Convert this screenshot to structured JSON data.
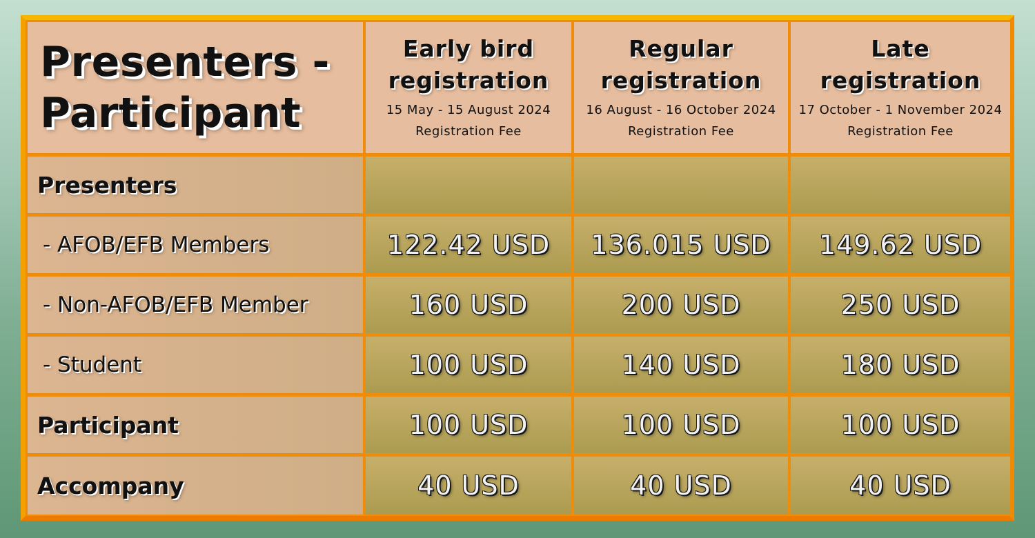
{
  "table": {
    "title_line1": "Presenters -",
    "title_line2": "Participant",
    "columns": [
      {
        "name_line1": "Early bird",
        "name_line2": "registration",
        "dates": "15 May - 15 August 2024",
        "fee_label": "Registration Fee"
      },
      {
        "name_line1": "Regular",
        "name_line2": "registration",
        "dates": "16 August - 16 October 2024",
        "fee_label": "Registration Fee"
      },
      {
        "name_line1": "Late",
        "name_line2": "registration",
        "dates": "17 October - 1 November 2024",
        "fee_label": "Registration Fee"
      }
    ],
    "rows": [
      {
        "label": "Presenters",
        "prices": [
          "",
          "",
          ""
        ]
      },
      {
        "label": " - AFOB/EFB Members",
        "prices": [
          "122.42 USD",
          "136.015 USD",
          "149.62 USD"
        ]
      },
      {
        "label": " - Non-AFOB/EFB Member",
        "prices": [
          "160 USD",
          "200 USD",
          "250 USD"
        ]
      },
      {
        "label": " - Student",
        "prices": [
          "100 USD",
          "140 USD",
          "180 USD"
        ]
      },
      {
        "label": "Participant",
        "prices": [
          "100 USD",
          "100 USD",
          "100 USD"
        ]
      },
      {
        "label": "Accompany",
        "prices": [
          "40 USD",
          "40 USD",
          "40 USD"
        ]
      }
    ]
  },
  "colors": {
    "border": "#ef8c0a",
    "header_bg": "#e6bd9e",
    "row_label_bg": "#d6b28b",
    "price_text": "#f2f2f2"
  }
}
